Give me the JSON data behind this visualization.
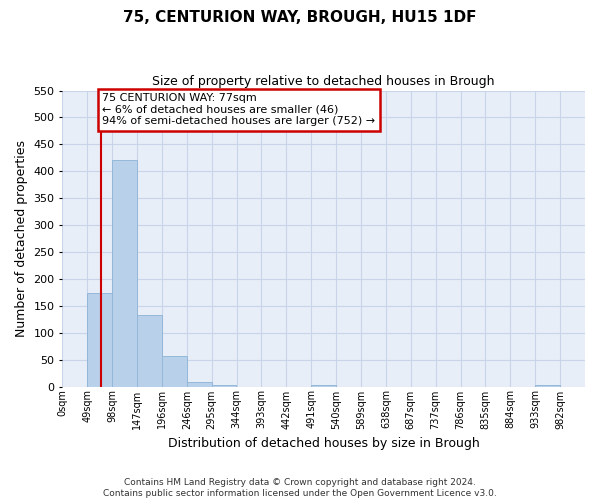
{
  "title": "75, CENTURION WAY, BROUGH, HU15 1DF",
  "subtitle": "Size of property relative to detached houses in Brough",
  "xlabel": "Distribution of detached houses by size in Brough",
  "ylabel": "Number of detached properties",
  "bin_edges": [
    0,
    49,
    98,
    147,
    196,
    245,
    294,
    343,
    392,
    441,
    490,
    539,
    588,
    637,
    686,
    735,
    784,
    833,
    882,
    931,
    980
  ],
  "bin_labels": [
    "0sqm",
    "49sqm",
    "98sqm",
    "147sqm",
    "196sqm",
    "246sqm",
    "295sqm",
    "344sqm",
    "393sqm",
    "442sqm",
    "491sqm",
    "540sqm",
    "589sqm",
    "638sqm",
    "687sqm",
    "737sqm",
    "786sqm",
    "835sqm",
    "884sqm",
    "933sqm",
    "982sqm"
  ],
  "counts": [
    0,
    173,
    421,
    133,
    57,
    8,
    3,
    0,
    0,
    0,
    2,
    0,
    0,
    0,
    0,
    0,
    0,
    0,
    0,
    2
  ],
  "bar_color": "#b8d0ea",
  "bar_edge_color": "#94b8d8",
  "grid_color": "#c8d4e8",
  "annotation_box_color": "#cc0000",
  "annotation_line_color": "#cc0000",
  "property_line_x": 77,
  "ylim": [
    0,
    550
  ],
  "yticks": [
    0,
    50,
    100,
    150,
    200,
    250,
    300,
    350,
    400,
    450,
    500,
    550
  ],
  "annotation_title": "75 CENTURION WAY: 77sqm",
  "annotation_line1": "← 6% of detached houses are smaller (46)",
  "annotation_line2": "94% of semi-detached houses are larger (752) →",
  "footer1": "Contains HM Land Registry data © Crown copyright and database right 2024.",
  "footer2": "Contains public sector information licensed under the Open Government Licence v3.0.",
  "background_color": "#e8eef8"
}
